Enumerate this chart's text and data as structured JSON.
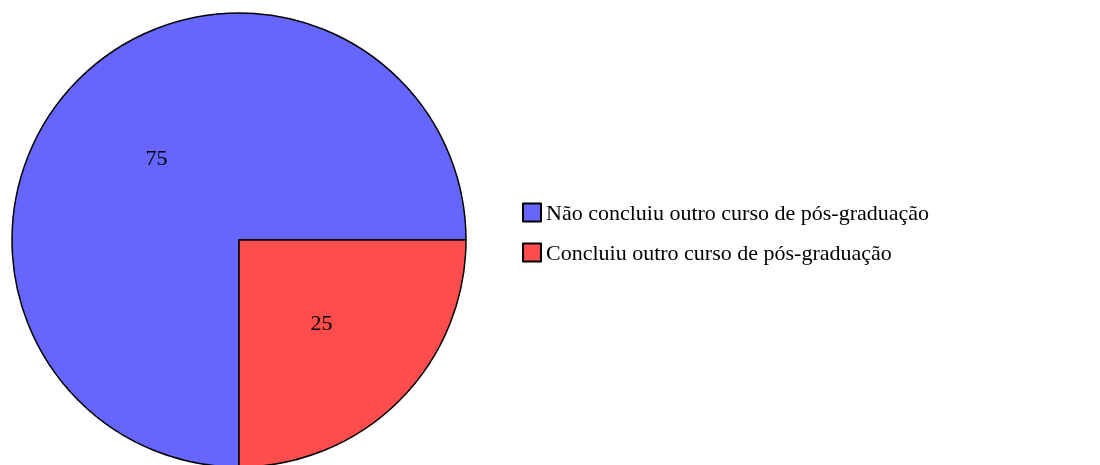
{
  "chart_data": {
    "type": "pie",
    "categories": [
      "Não concluiu outro curso de pós-graduação",
      "Concluiu outro curso de pós-graduação"
    ],
    "values": [
      75,
      25
    ],
    "colors": [
      "#6666ff",
      "#ff4d4d"
    ],
    "data_labels": true,
    "legend": "right"
  }
}
